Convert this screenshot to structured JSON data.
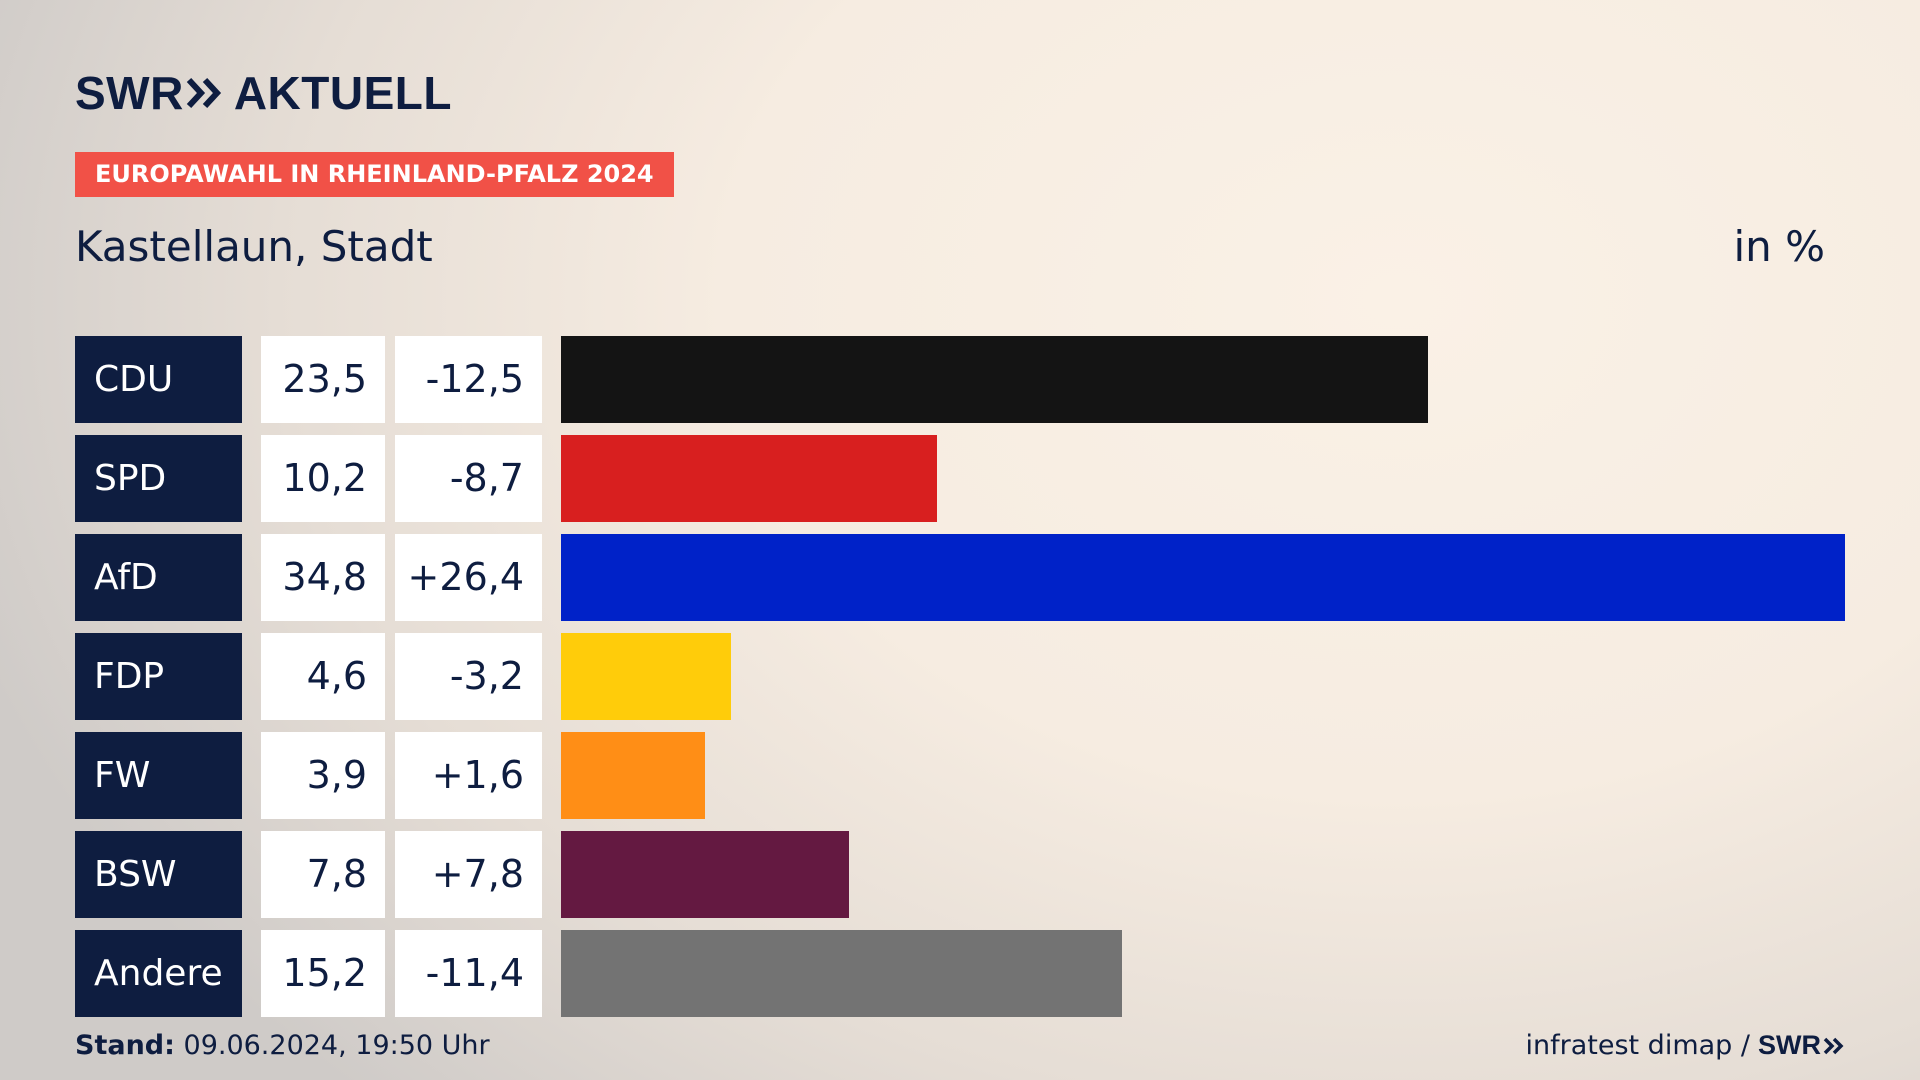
{
  "header": {
    "brand_left": "SWR",
    "brand_right": "AKTUELL",
    "badge": "EUROPAWAHL IN RHEINLAND-PFALZ 2024",
    "title": "Kastellaun, Stadt",
    "unit": "in %"
  },
  "chart_data": {
    "type": "bar",
    "orientation": "horizontal",
    "title": "Kastellaun, Stadt",
    "unit": "in %",
    "categories": [
      "CDU",
      "SPD",
      "AfD",
      "FDP",
      "FW",
      "BSW",
      "Andere"
    ],
    "values": [
      23.5,
      10.2,
      34.8,
      4.6,
      3.9,
      7.8,
      15.2
    ],
    "value_labels": [
      "23,5",
      "10,2",
      "34,8",
      "4,6",
      "3,9",
      "7,8",
      "15,2"
    ],
    "changes": [
      -12.5,
      -8.7,
      26.4,
      -3.2,
      1.6,
      7.8,
      -11.4
    ],
    "change_labels": [
      "-12,5",
      "-8,7",
      "+26,4",
      "-3,2",
      "+1,6",
      "+7,8",
      "-11,4"
    ],
    "colors": [
      "#141414",
      "#d81f1f",
      "#0022c8",
      "#ffcc0a",
      "#ff8e16",
      "#641941",
      "#737373"
    ],
    "xlim": [
      0,
      34.8
    ],
    "grid": false,
    "legend": "none"
  },
  "footer": {
    "stand_label": "Stand:",
    "stand_value": "09.06.2024, 19:50 Uhr",
    "source": "infratest dimap /",
    "logo": "SWR"
  }
}
